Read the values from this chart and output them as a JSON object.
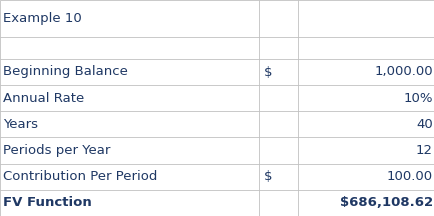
{
  "title": "Example 10",
  "rows": [
    {
      "label": "Beginning Balance",
      "col2": "$",
      "col3": "1,000.00",
      "bold": false
    },
    {
      "label": "Annual Rate",
      "col2": "",
      "col3": "10%",
      "bold": false
    },
    {
      "label": "Years",
      "col2": "",
      "col3": "40",
      "bold": false
    },
    {
      "label": "Periods per Year",
      "col2": "",
      "col3": "12",
      "bold": false
    },
    {
      "label": "Contribution Per Period",
      "col2": "$",
      "col3": "100.00",
      "bold": false
    },
    {
      "label": "FV Function",
      "col2": "",
      "col3": "$686,108.62",
      "bold": true
    }
  ],
  "bg_color": "#ffffff",
  "border_color": "#c0c0c0",
  "text_color": "#1f3864",
  "col_div1": 0.595,
  "col_div2": 0.685,
  "font_size": 9.5,
  "title_font_size": 9.5,
  "lw": 0.6
}
